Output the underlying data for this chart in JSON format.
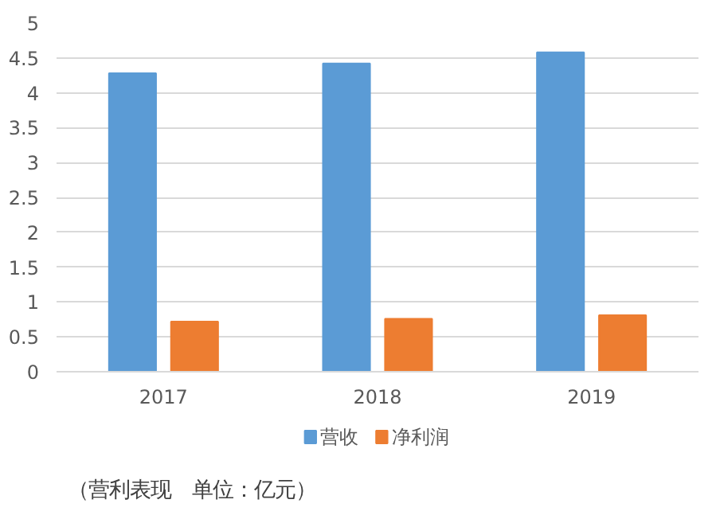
{
  "chart_data": {
    "type": "bar",
    "categories": [
      "2017",
      "2018",
      "2019"
    ],
    "series": [
      {
        "name": "营收",
        "color": "#5b9bd5",
        "values": [
          4.28,
          4.42,
          4.58
        ]
      },
      {
        "name": "净利润",
        "color": "#ed7d31",
        "values": [
          0.72,
          0.76,
          0.81
        ]
      }
    ],
    "ylim": [
      0,
      5
    ],
    "yticks": [
      0,
      0.5,
      1,
      1.5,
      2,
      2.5,
      3,
      3.5,
      4,
      4.5,
      5
    ],
    "grid": "y",
    "legend": "bottom",
    "annotations": [
      "（营利表现　单位：亿元）"
    ]
  }
}
